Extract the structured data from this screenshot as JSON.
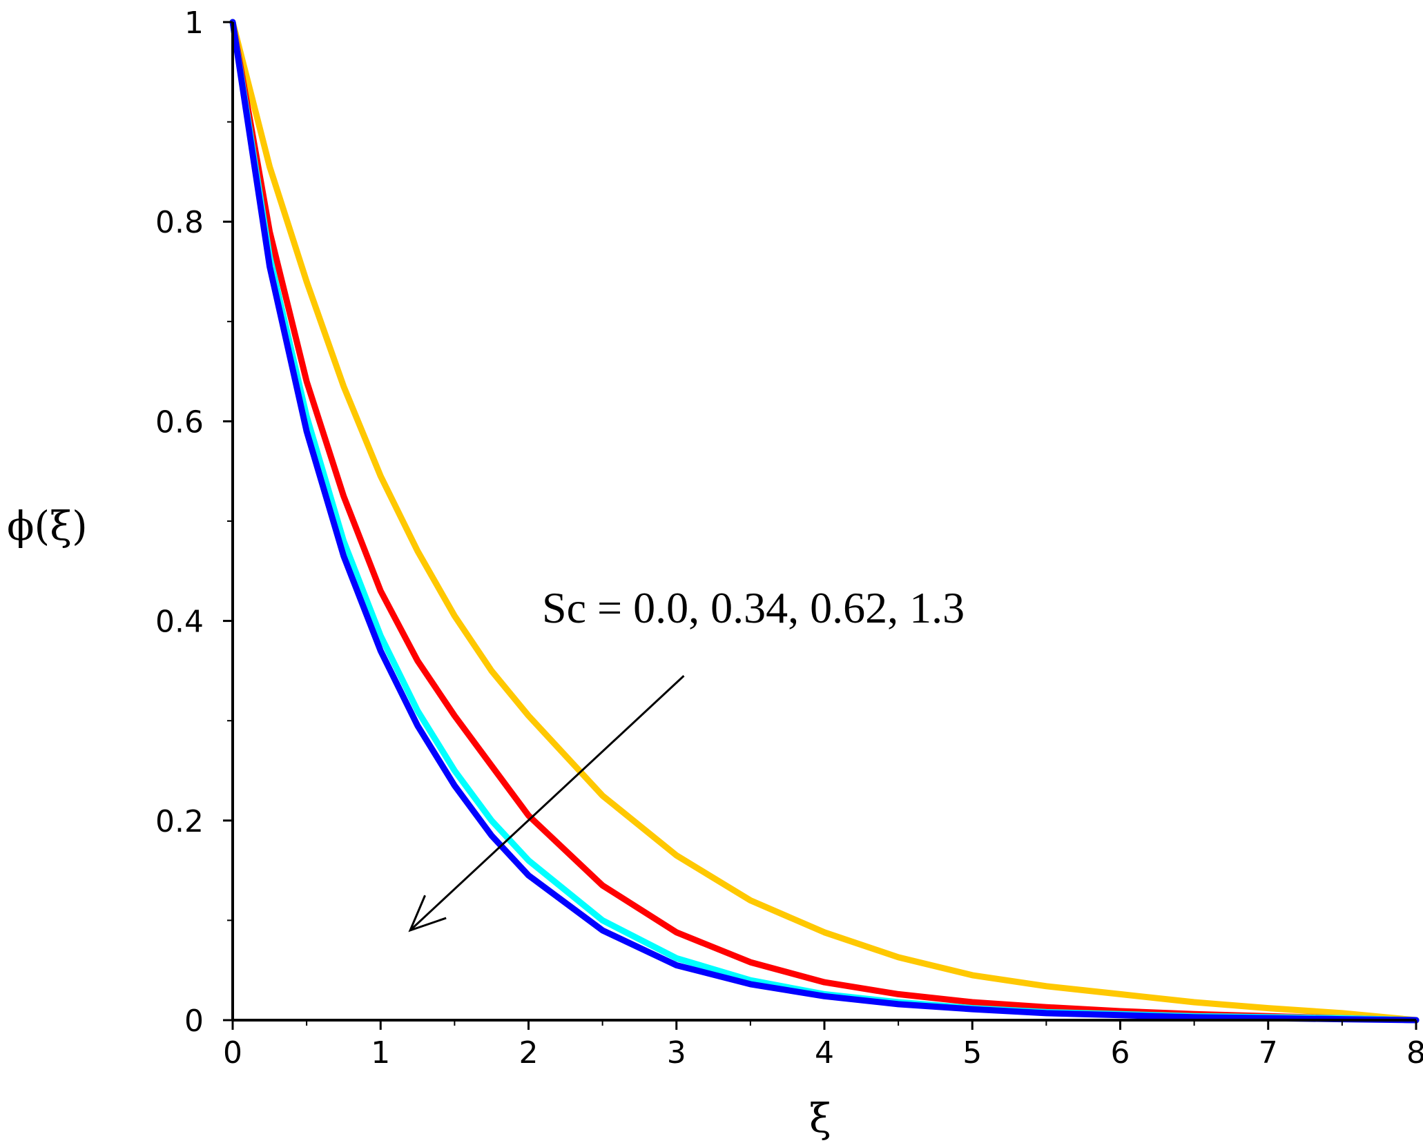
{
  "chart_data": {
    "type": "line",
    "xlabel": "ξ",
    "ylabel": "ϕ(ξ)",
    "xlim": [
      0,
      8
    ],
    "ylim": [
      0,
      1
    ],
    "xticks": [
      "0",
      "1",
      "2",
      "3",
      "4",
      "5",
      "6",
      "7",
      "8"
    ],
    "yticks": [
      "0",
      "0.2",
      "0.4",
      "0.6",
      "0.8",
      "1"
    ],
    "grid": false,
    "x": [
      0,
      0.25,
      0.5,
      0.75,
      1,
      1.25,
      1.5,
      1.75,
      2,
      2.5,
      3,
      3.5,
      4,
      4.5,
      5,
      5.5,
      6,
      6.5,
      7,
      7.5,
      8
    ],
    "series": [
      {
        "color": "#FFC800",
        "values": [
          1.0,
          0.855,
          0.74,
          0.635,
          0.545,
          0.47,
          0.405,
          0.35,
          0.305,
          0.225,
          0.165,
          0.12,
          0.088,
          0.063,
          0.045,
          0.034,
          0.026,
          0.018,
          0.012,
          0.007,
          0.0
        ]
      },
      {
        "color": "#FF0000",
        "values": [
          1.0,
          0.79,
          0.64,
          0.525,
          0.43,
          0.36,
          0.305,
          0.255,
          0.205,
          0.135,
          0.088,
          0.058,
          0.038,
          0.026,
          0.018,
          0.013,
          0.009,
          0.006,
          0.004,
          0.002,
          0.0
        ]
      },
      {
        "color": "#00FFFF",
        "values": [
          1.0,
          0.765,
          0.605,
          0.48,
          0.385,
          0.31,
          0.25,
          0.2,
          0.16,
          0.1,
          0.062,
          0.04,
          0.026,
          0.018,
          0.012,
          0.008,
          0.006,
          0.004,
          0.003,
          0.002,
          0.0
        ]
      },
      {
        "color": "#0000FF",
        "values": [
          1.0,
          0.755,
          0.59,
          0.465,
          0.37,
          0.295,
          0.235,
          0.185,
          0.145,
          0.09,
          0.055,
          0.036,
          0.024,
          0.016,
          0.011,
          0.007,
          0.005,
          0.003,
          0.002,
          0.001,
          0.0
        ]
      }
    ],
    "annotation": {
      "text": "Sc = 0.0, 0.34, 0.62, 1.3",
      "arrow_from": [
        3.05,
        0.345
      ],
      "arrow_to": [
        1.2,
        0.09
      ]
    }
  }
}
